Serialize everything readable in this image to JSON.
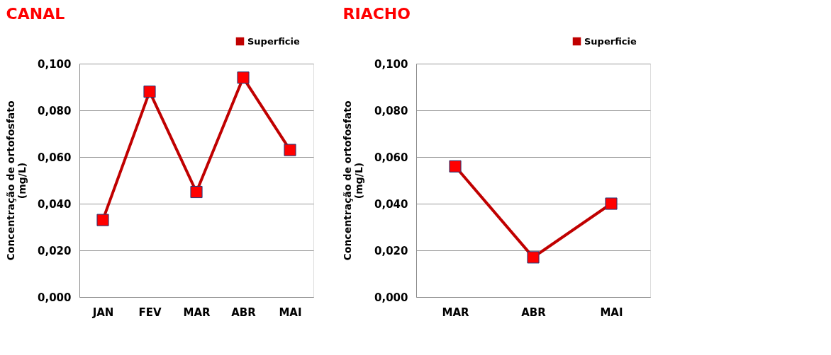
{
  "chart_data": [
    {
      "type": "line",
      "title": "CANAL",
      "ylabel": "Concentração de ortofosfato (mg/L)",
      "categories": [
        "JAN",
        "FEV",
        "MAR",
        "ABR",
        "MAI"
      ],
      "series": [
        {
          "name": "Superficie",
          "color": "#c00000",
          "values": [
            0.033,
            0.088,
            0.045,
            0.094,
            0.063
          ]
        }
      ],
      "ylim": [
        0,
        0.1
      ],
      "yticks": [
        {
          "value": 0,
          "label": "0,000"
        },
        {
          "value": 0.02,
          "label": "0,020"
        },
        {
          "value": 0.04,
          "label": "0,040"
        },
        {
          "value": 0.06,
          "label": "0,060"
        },
        {
          "value": 0.08,
          "label": "0,080"
        },
        {
          "value": 0.1,
          "label": "0,100"
        }
      ],
      "grid": "y",
      "legend": "top right",
      "marker": "square",
      "line_style": "solid"
    },
    {
      "type": "line",
      "title": "RIACHO",
      "ylabel": "Concentração de ortofosfato (mg/L)",
      "categories": [
        "MAR",
        "ABR",
        "MAI"
      ],
      "series": [
        {
          "name": "Superficie",
          "color": "#c00000",
          "values": [
            0.056,
            0.017,
            0.04
          ]
        }
      ],
      "ylim": [
        0,
        0.1
      ],
      "yticks": [
        {
          "value": 0,
          "label": "0,000"
        },
        {
          "value": 0.02,
          "label": "0,020"
        },
        {
          "value": 0.04,
          "label": "0,040"
        },
        {
          "value": 0.06,
          "label": "0,060"
        },
        {
          "value": 0.08,
          "label": "0,080"
        },
        {
          "value": 0.1,
          "label": "0,100"
        }
      ],
      "grid": "y",
      "legend": "top right",
      "marker": "square",
      "line_style": "solid"
    }
  ]
}
